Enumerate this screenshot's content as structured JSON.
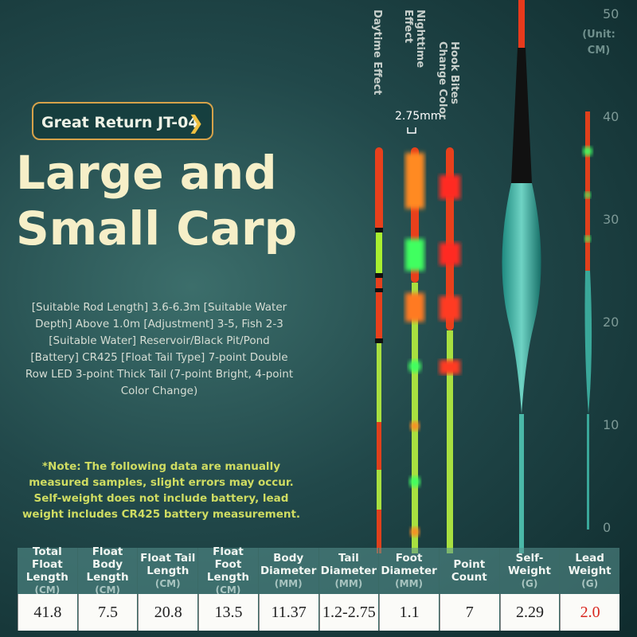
{
  "badge": "Great Return JT-04",
  "title": [
    "Large and",
    "Small Carp"
  ],
  "description": "[Suitable Rod Length] 3.6-6.3m [Suitable Water Depth] Above 1.0m [Adjustment] 3-5, Fish 2-3 [Suitable Water] Reservoir/Black Pit/Pond [Battery] CR425 [Float Tail Type] 7-point Double Row LED 3-point Thick Tail (7-point Bright, 4-point Color Change)",
  "note": "*Note: The following data are manually measured samples, slight errors may occur. Self-weight does not include battery, lead weight includes CR425 battery measurement.",
  "float_labels": [
    "Daytime Effect",
    [
      "Nighttime",
      "Effect"
    ],
    [
      "Hook Bites",
      "Change Color"
    ]
  ],
  "dimension": "2.75mm",
  "scale": {
    "unit": [
      "(Unit:",
      "CM)"
    ],
    "ticks": [
      50,
      40,
      30,
      20,
      10,
      0
    ]
  },
  "table": {
    "columns": [
      {
        "header": "Total Float Length",
        "unit": "(CM)",
        "value": "41.8"
      },
      {
        "header": "Float Body Length",
        "unit": "(CM)",
        "value": "7.5"
      },
      {
        "header": "Float Tail Length",
        "unit": "(CM)",
        "value": "20.8"
      },
      {
        "header": "Float Foot Length",
        "unit": "(CM)",
        "value": "13.5"
      },
      {
        "header": "Body Diameter",
        "unit": "(MM)",
        "value": "11.37"
      },
      {
        "header": "Tail Diameter",
        "unit": "(MM)",
        "value": "1.2-2.75"
      },
      {
        "header": "Foot Diameter",
        "unit": "(MM)",
        "value": "1.1"
      },
      {
        "header": "Point Count",
        "value": "7"
      },
      {
        "header": "Self-Weight",
        "unit": "(G)",
        "value": "2.29"
      },
      {
        "header": "Lead Weight",
        "unit": "(G)",
        "value": "2.0"
      }
    ]
  }
}
